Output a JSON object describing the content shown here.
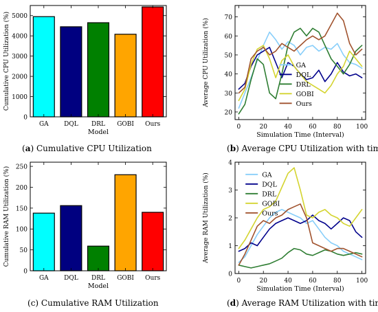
{
  "captions": {
    "a": {
      "letter": "a",
      "text": "Cumulative CPU Utilization"
    },
    "b": {
      "letter": "b",
      "text": "Average CPU Utilization with time"
    },
    "c": {
      "letter": "c",
      "text": "Cumulative RAM Utilization"
    },
    "d": {
      "letter": "d",
      "text": "Average RAM Utilization with time"
    }
  },
  "chart_data": [
    {
      "type": "bar",
      "categories": [
        "GA",
        "DQL",
        "DRL",
        "GOBI",
        "Ours"
      ],
      "values": [
        4950,
        4450,
        4650,
        4080,
        5430
      ],
      "colors": [
        "#00ffff",
        "#000080",
        "#008000",
        "#ffa500",
        "#ff0000"
      ],
      "xlabel": "Model",
      "ylabel": "Cumulative CPU Utilization (%)",
      "ylim": [
        0,
        5500
      ],
      "yticks": [
        0,
        1000,
        2000,
        3000,
        4000,
        5000
      ],
      "grid": false
    },
    {
      "type": "line",
      "xlabel": "Simulation Time (Interval)",
      "ylabel": "Average CPU Utilization (%)",
      "xlim": [
        -3,
        103
      ],
      "ylim": [
        16,
        76
      ],
      "xticks": [
        0,
        20,
        40,
        60,
        80,
        100
      ],
      "yticks": [
        20,
        30,
        40,
        50,
        60,
        70
      ],
      "legend": "center",
      "series": [
        {
          "name": "GA",
          "color": "#87cefa",
          "x": [
            0,
            5,
            10,
            15,
            20,
            25,
            30,
            35,
            40,
            45,
            50,
            55,
            60,
            65,
            70,
            75,
            80,
            85,
            90,
            95,
            100
          ],
          "values": [
            22,
            30,
            38,
            47,
            55,
            62,
            58,
            53,
            57,
            55,
            50,
            54,
            55,
            52,
            54,
            53,
            56,
            50,
            46,
            45,
            43
          ]
        },
        {
          "name": "DQL",
          "color": "#00008b",
          "x": [
            0,
            5,
            10,
            15,
            20,
            25,
            30,
            35,
            40,
            45,
            50,
            55,
            60,
            65,
            70,
            75,
            80,
            85,
            90,
            95,
            100
          ],
          "values": [
            32,
            35,
            44,
            50,
            52,
            54,
            46,
            38,
            46,
            44,
            40,
            37,
            38,
            42,
            36,
            40,
            46,
            41,
            39,
            40,
            38
          ]
        },
        {
          "name": "DRL",
          "color": "#2e7d32",
          "x": [
            0,
            5,
            10,
            15,
            20,
            25,
            30,
            35,
            40,
            45,
            50,
            55,
            60,
            65,
            70,
            75,
            80,
            85,
            90,
            95,
            100
          ],
          "values": [
            19,
            24,
            37,
            48,
            45,
            30,
            27,
            40,
            55,
            62,
            64,
            60,
            64,
            62,
            55,
            48,
            44,
            40,
            45,
            52,
            55
          ]
        },
        {
          "name": "GOBI",
          "color": "#d4d430",
          "x": [
            0,
            5,
            10,
            15,
            20,
            25,
            30,
            35,
            40,
            45,
            50,
            55,
            60,
            65,
            70,
            75,
            80,
            85,
            90,
            95,
            100
          ],
          "values": [
            26,
            32,
            45,
            53,
            55,
            48,
            38,
            47,
            50,
            44,
            40,
            36,
            34,
            32,
            30,
            34,
            40,
            44,
            52,
            48,
            44
          ]
        },
        {
          "name": "Ours",
          "color": "#a0522d",
          "x": [
            0,
            5,
            10,
            15,
            20,
            25,
            30,
            35,
            40,
            45,
            50,
            55,
            60,
            65,
            70,
            75,
            80,
            85,
            90,
            95,
            100
          ],
          "values": [
            30,
            33,
            48,
            52,
            54,
            50,
            52,
            56,
            54,
            52,
            55,
            58,
            60,
            58,
            60,
            66,
            72,
            68,
            56,
            50,
            53
          ]
        }
      ]
    },
    {
      "type": "bar",
      "categories": [
        "GA",
        "DQL",
        "DRL",
        "GOBI",
        "Ours"
      ],
      "values": [
        138,
        156,
        59,
        230,
        140
      ],
      "colors": [
        "#00ffff",
        "#000080",
        "#008000",
        "#ffa500",
        "#ff0000"
      ],
      "xlabel": "Model",
      "ylabel": "Cumulative RAM Utilization (%)",
      "ylim": [
        0,
        260
      ],
      "yticks": [
        0,
        50,
        100,
        150,
        200,
        250
      ],
      "grid": false
    },
    {
      "type": "line",
      "xlabel": "Simulation Time (Interval)",
      "ylabel": "Average RAM Utilization (%)",
      "xlim": [
        -3,
        103
      ],
      "ylim": [
        0,
        4
      ],
      "xticks": [
        0,
        20,
        40,
        60,
        80,
        100
      ],
      "yticks": [
        0,
        1,
        2,
        3,
        4
      ],
      "legend": "top-left",
      "series": [
        {
          "name": "GA",
          "color": "#87cefa",
          "x": [
            0,
            5,
            10,
            15,
            20,
            25,
            30,
            35,
            40,
            45,
            50,
            55,
            60,
            65,
            70,
            75,
            80,
            85,
            90,
            95,
            100
          ],
          "values": [
            0.4,
            0.6,
            1.0,
            1.4,
            1.7,
            2.0,
            2.2,
            2.3,
            2.2,
            2.1,
            2.0,
            1.8,
            1.9,
            1.6,
            1.3,
            1.1,
            1.0,
            0.8,
            0.7,
            0.6,
            0.5
          ]
        },
        {
          "name": "DQL",
          "color": "#00008b",
          "x": [
            0,
            5,
            10,
            15,
            20,
            25,
            30,
            35,
            40,
            45,
            50,
            55,
            60,
            65,
            70,
            75,
            80,
            85,
            90,
            95,
            100
          ],
          "values": [
            0.8,
            0.9,
            1.1,
            1.0,
            1.3,
            1.6,
            1.8,
            1.9,
            2.0,
            1.9,
            1.8,
            1.9,
            2.1,
            1.9,
            1.8,
            1.6,
            1.8,
            2.0,
            1.9,
            1.5,
            1.3
          ]
        },
        {
          "name": "DRL",
          "color": "#2e7d32",
          "x": [
            0,
            5,
            10,
            15,
            20,
            25,
            30,
            35,
            40,
            45,
            50,
            55,
            60,
            65,
            70,
            75,
            80,
            85,
            90,
            95,
            100
          ],
          "values": [
            0.3,
            0.25,
            0.2,
            0.25,
            0.3,
            0.35,
            0.45,
            0.55,
            0.75,
            0.9,
            0.85,
            0.7,
            0.65,
            0.75,
            0.85,
            0.8,
            0.7,
            0.65,
            0.7,
            0.75,
            0.7
          ]
        },
        {
          "name": "GOBI",
          "color": "#d4d430",
          "x": [
            0,
            5,
            10,
            15,
            20,
            25,
            30,
            35,
            40,
            45,
            50,
            55,
            60,
            65,
            70,
            75,
            80,
            85,
            90,
            95,
            100
          ],
          "values": [
            0.9,
            1.2,
            1.6,
            2.0,
            2.3,
            2.4,
            2.6,
            3.1,
            3.6,
            3.8,
            3.0,
            2.1,
            2.0,
            2.2,
            2.3,
            2.1,
            2.0,
            1.8,
            1.7,
            2.0,
            2.3
          ]
        },
        {
          "name": "Ours",
          "color": "#a0522d",
          "x": [
            0,
            5,
            10,
            15,
            20,
            25,
            30,
            35,
            40,
            45,
            50,
            55,
            60,
            65,
            70,
            75,
            80,
            85,
            90,
            95,
            100
          ],
          "values": [
            0.3,
            0.7,
            1.2,
            1.7,
            1.9,
            1.8,
            2.0,
            2.1,
            2.3,
            2.4,
            2.5,
            2.0,
            1.1,
            1.0,
            0.9,
            0.8,
            0.9,
            0.9,
            0.8,
            0.7,
            0.6
          ]
        }
      ]
    }
  ]
}
